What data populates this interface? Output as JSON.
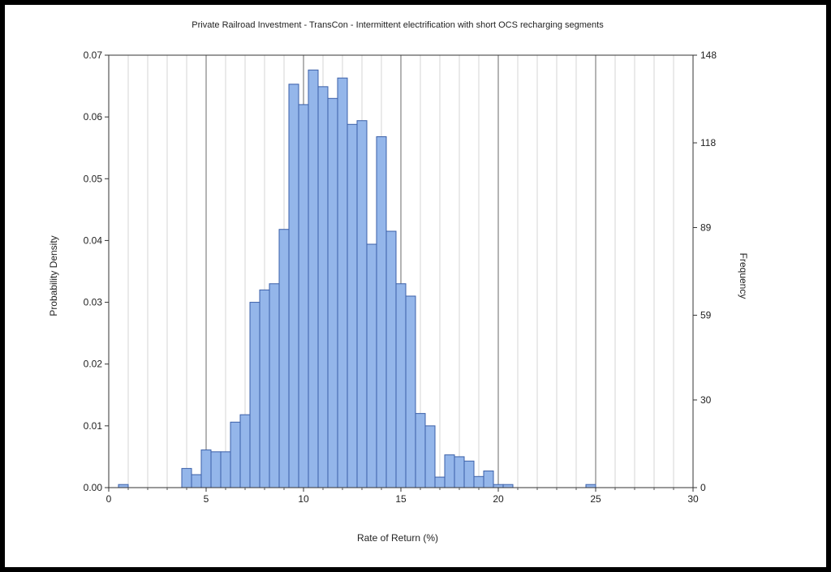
{
  "chart_data": {
    "type": "bar",
    "title": "Private Railroad Investment - TransCon - Intermittent electrification with short OCS recharging segments",
    "xlabel": "Rate of Return (%)",
    "ylabel": "Probability Density",
    "y2label": "Frequency",
    "xlim": [
      0,
      30
    ],
    "ylim": [
      0,
      0.07
    ],
    "y2lim": [
      0,
      148
    ],
    "x_ticks": [
      "0",
      "5",
      "10",
      "15",
      "20",
      "25",
      "30"
    ],
    "y_ticks": [
      "0.00",
      "0.01",
      "0.02",
      "0.03",
      "0.04",
      "0.05",
      "0.06",
      "0.07"
    ],
    "y2_ticks": [
      "0",
      "30",
      "59",
      "89",
      "118",
      "148"
    ],
    "bin_width": 0.5,
    "bin_starts": [
      0.5,
      3.75,
      4.25,
      4.75,
      5.25,
      5.75,
      6.25,
      6.75,
      7.25,
      7.75,
      8.25,
      8.75,
      9.25,
      9.75,
      10.25,
      10.75,
      11.25,
      11.75,
      12.25,
      12.75,
      13.25,
      13.75,
      14.25,
      14.75,
      15.25,
      15.75,
      16.25,
      16.75,
      17.25,
      17.75,
      18.25,
      18.75,
      19.25,
      19.75,
      20.25,
      20.75,
      21.25,
      21.75,
      22.25,
      24.5
    ],
    "values": [
      0.0005,
      0.0031,
      0.0021,
      0.0061,
      0.0058,
      0.0058,
      0.0106,
      0.0118,
      0.03,
      0.032,
      0.033,
      0.0418,
      0.0653,
      0.062,
      0.0676,
      0.0649,
      0.063,
      0.0663,
      0.0588,
      0.0594,
      0.0394,
      0.0568,
      0.0415,
      0.033,
      0.031,
      0.012,
      0.01,
      0.0017,
      0.0053,
      0.005,
      0.0043,
      0.0018,
      0.0027,
      0.0005,
      0.0005,
      0.0,
      0.0,
      0.0,
      0.0,
      0.0005
    ],
    "bar_fill": "#94b6ea",
    "bar_stroke": "#3a5fa8",
    "grid": true
  }
}
